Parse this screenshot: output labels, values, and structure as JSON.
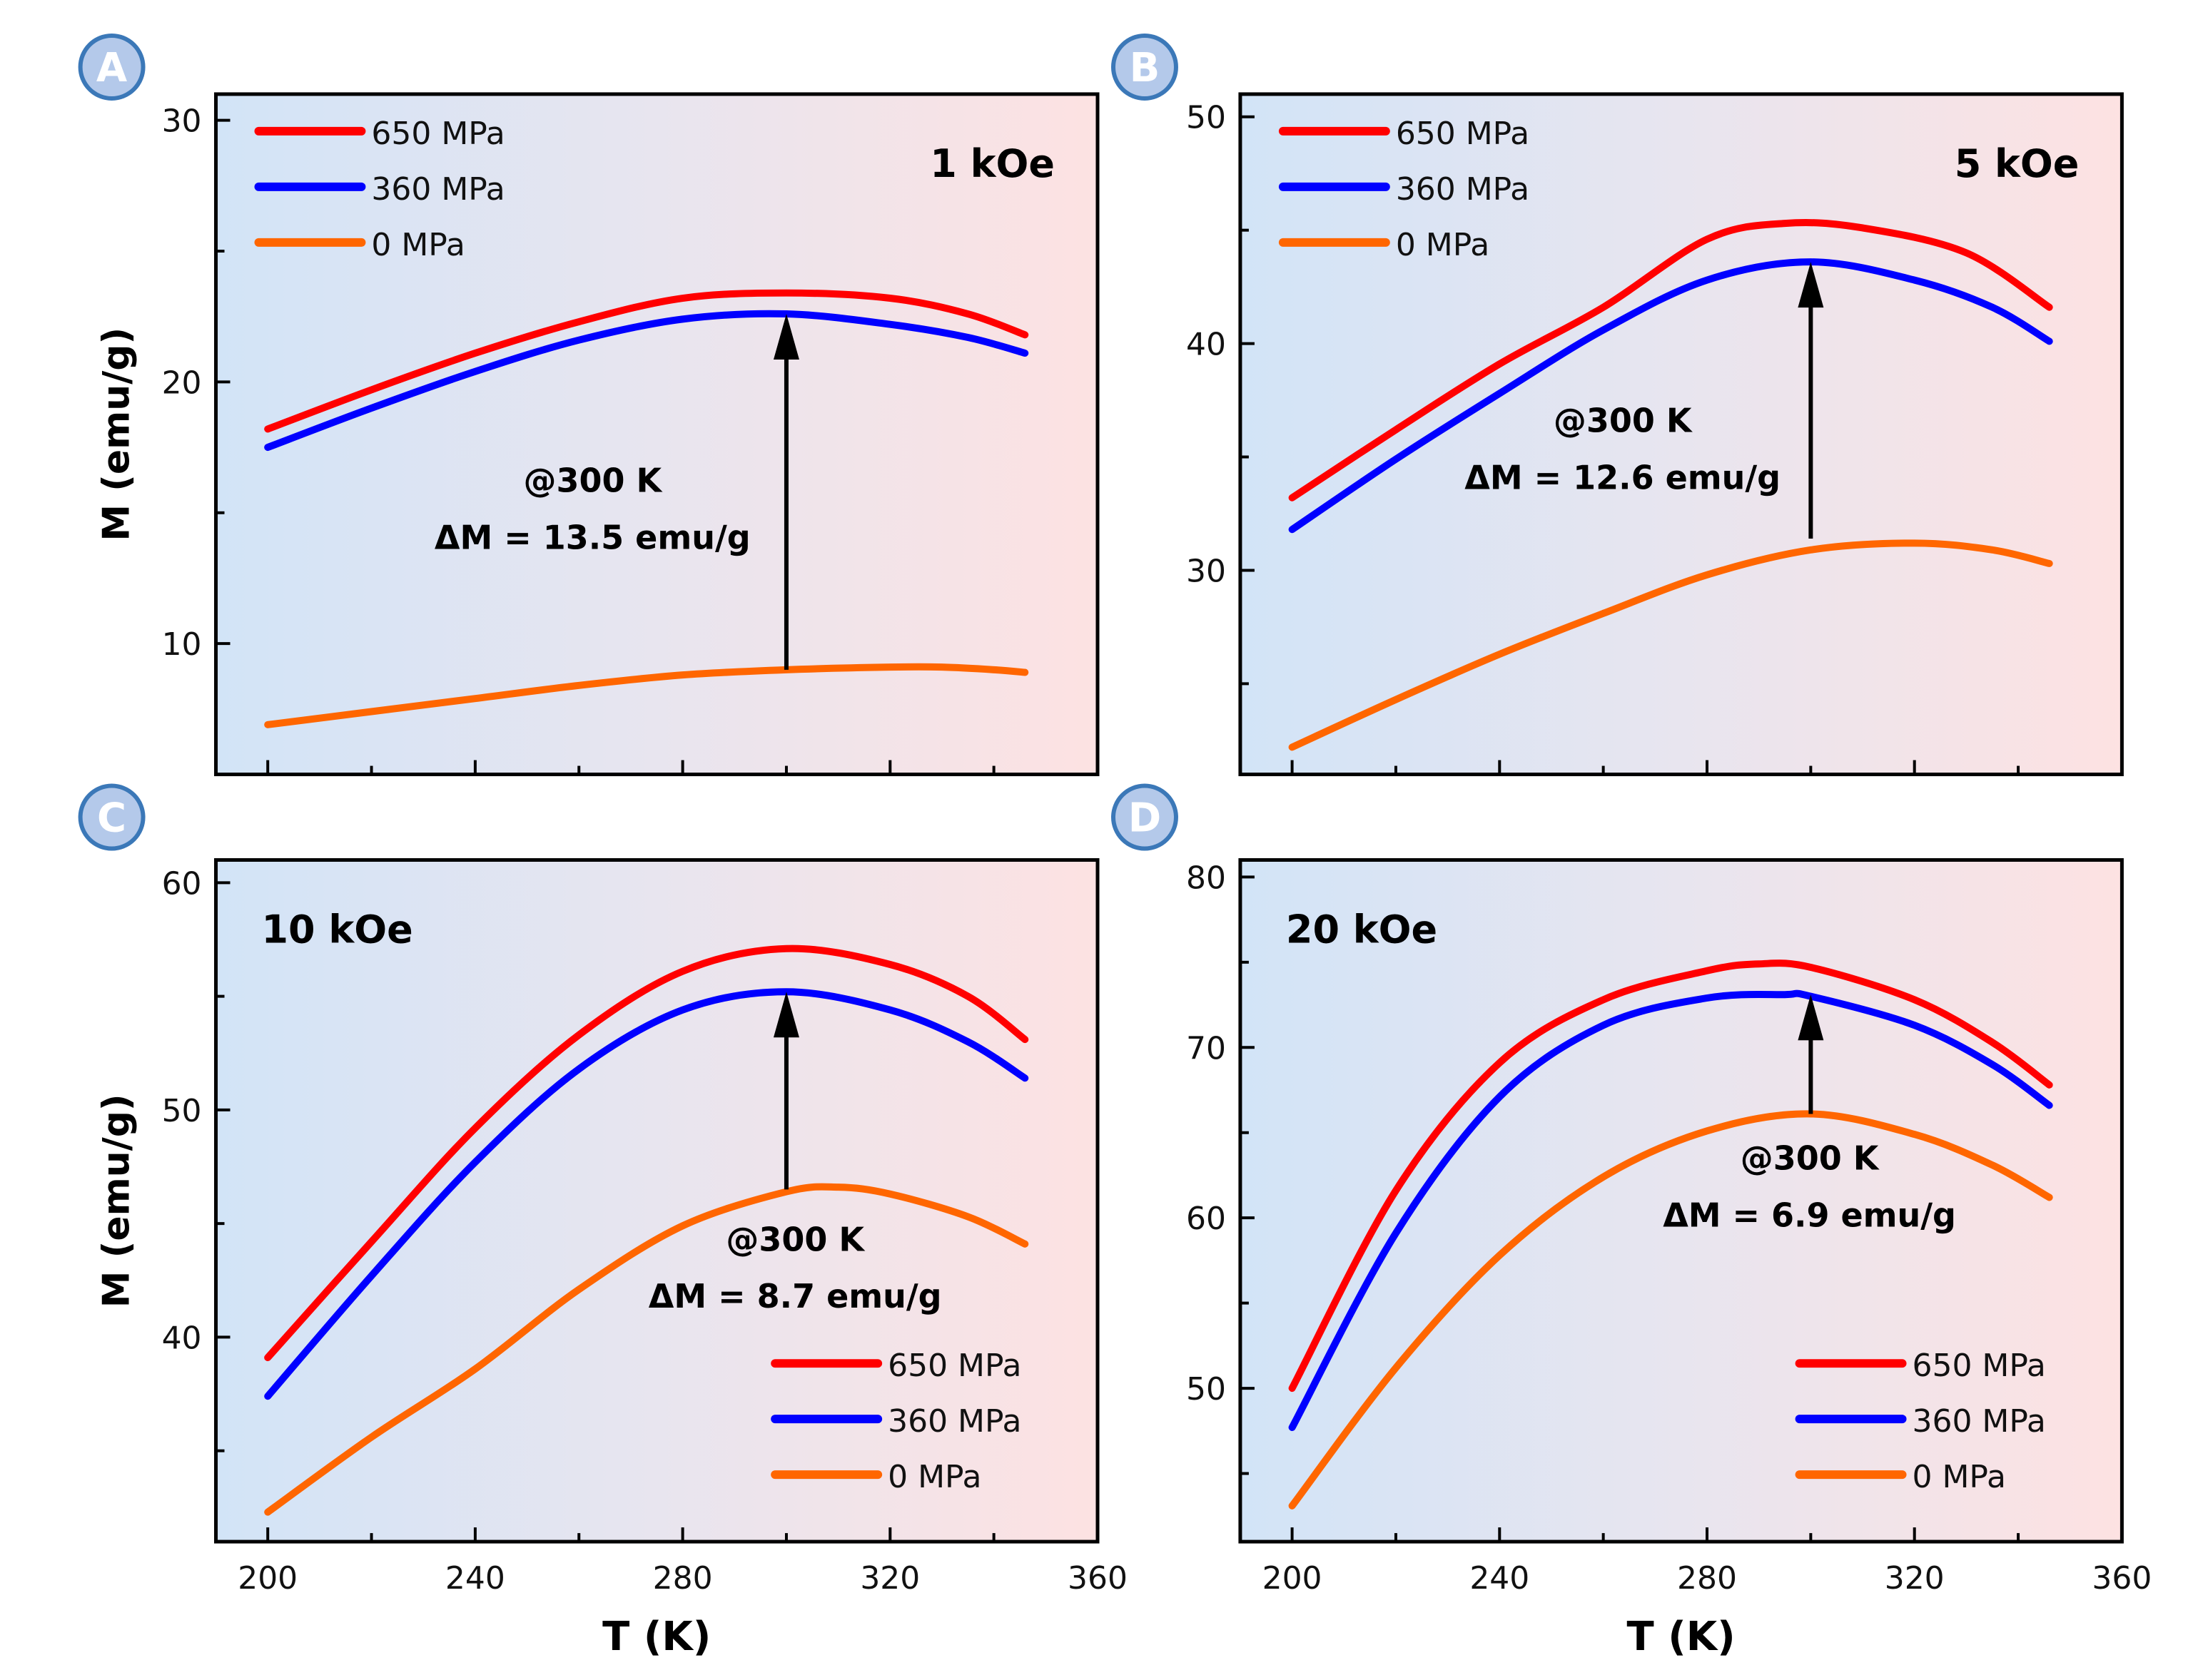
{
  "chart_data": [
    {
      "panel_label": "A",
      "type": "line",
      "field": "1 kOe",
      "xlabel": "",
      "ylabel": "M (emu/g)",
      "xlim": [
        190,
        360
      ],
      "ylim": [
        5,
        31
      ],
      "xticks": [
        200,
        240,
        280,
        320,
        360
      ],
      "yticks": [
        10,
        20,
        30
      ],
      "show_xticklabels": false,
      "legend": "top-left",
      "annotation": {
        "line1": "@300 K",
        "line2": "ΔM = 13.5 emu/g",
        "arrow_x": 300,
        "arrow_from": 9.0,
        "arrow_to": 22.6
      },
      "series": [
        {
          "name": "650 MPa",
          "color": "#ff0000",
          "x": [
            200,
            220,
            240,
            260,
            280,
            300,
            320,
            335,
            346
          ],
          "y": [
            18.2,
            19.7,
            21.1,
            22.3,
            23.2,
            23.4,
            23.2,
            22.6,
            21.8
          ]
        },
        {
          "name": "360 MPa",
          "color": "#0000ff",
          "x": [
            200,
            220,
            240,
            260,
            280,
            300,
            320,
            335,
            346
          ],
          "y": [
            17.5,
            19.0,
            20.4,
            21.6,
            22.4,
            22.6,
            22.2,
            21.7,
            21.1
          ]
        },
        {
          "name": "0 MPa",
          "color": "#ff6600",
          "x": [
            200,
            220,
            240,
            260,
            280,
            300,
            320,
            330,
            340,
            346
          ],
          "y": [
            6.9,
            7.4,
            7.9,
            8.4,
            8.8,
            9.0,
            9.1,
            9.1,
            9.0,
            8.9
          ]
        }
      ]
    },
    {
      "panel_label": "B",
      "type": "line",
      "field": "5 kOe",
      "xlabel": "",
      "ylabel": "",
      "xlim": [
        190,
        360
      ],
      "ylim": [
        21,
        51
      ],
      "xticks": [
        200,
        240,
        280,
        320,
        360
      ],
      "yticks": [
        30,
        40,
        50
      ],
      "show_xticklabels": false,
      "legend": "top-left",
      "annotation": {
        "line1": "@300 K",
        "line2": "ΔM = 12.6 emu/g",
        "arrow_x": 300,
        "arrow_from": 31.4,
        "arrow_to": 43.6
      },
      "series": [
        {
          "name": "650 MPa",
          "color": "#ff0000",
          "x": [
            200,
            220,
            240,
            260,
            280,
            295,
            310,
            330,
            346
          ],
          "y": [
            33.2,
            36.2,
            39.1,
            41.6,
            44.6,
            45.3,
            45.1,
            44.0,
            41.6
          ]
        },
        {
          "name": "360 MPa",
          "color": "#0000ff",
          "x": [
            200,
            220,
            240,
            260,
            280,
            300,
            320,
            335,
            346
          ],
          "y": [
            31.8,
            34.9,
            37.8,
            40.6,
            42.8,
            43.6,
            42.8,
            41.6,
            40.1
          ]
        },
        {
          "name": "0 MPa",
          "color": "#ff6600",
          "x": [
            200,
            220,
            240,
            260,
            280,
            300,
            320,
            335,
            346
          ],
          "y": [
            22.2,
            24.3,
            26.3,
            28.1,
            29.8,
            30.9,
            31.2,
            30.9,
            30.3
          ]
        }
      ]
    },
    {
      "panel_label": "C",
      "type": "line",
      "field": "10 kOe",
      "xlabel": "T (K)",
      "ylabel": "M (emu/g)",
      "xlim": [
        190,
        360
      ],
      "ylim": [
        31,
        61
      ],
      "xticks": [
        200,
        240,
        280,
        320,
        360
      ],
      "yticks": [
        40,
        50,
        60
      ],
      "show_xticklabels": true,
      "legend": "bottom-right",
      "annotation": {
        "line1": "@300 K",
        "line2": "ΔM = 8.7 emu/g",
        "arrow_x": 300,
        "arrow_from": 46.5,
        "arrow_to": 55.2
      },
      "series": [
        {
          "name": "650 MPa",
          "color": "#ff0000",
          "x": [
            200,
            220,
            240,
            260,
            280,
            300,
            320,
            335,
            346
          ],
          "y": [
            39.1,
            44.2,
            49.2,
            53.3,
            56.1,
            57.1,
            56.4,
            55.0,
            53.1
          ]
        },
        {
          "name": "360 MPa",
          "color": "#0000ff",
          "x": [
            200,
            220,
            240,
            260,
            280,
            300,
            320,
            335,
            346
          ],
          "y": [
            37.4,
            42.7,
            47.7,
            51.8,
            54.4,
            55.2,
            54.4,
            53.0,
            51.4
          ]
        },
        {
          "name": "0 MPa",
          "color": "#ff6600",
          "x": [
            200,
            220,
            240,
            260,
            280,
            300,
            310,
            320,
            335,
            346
          ],
          "y": [
            32.3,
            35.6,
            38.6,
            42.1,
            44.9,
            46.4,
            46.6,
            46.3,
            45.3,
            44.1
          ]
        }
      ]
    },
    {
      "panel_label": "D",
      "type": "line",
      "field": "20 kOe",
      "xlabel": "T (K)",
      "ylabel": "",
      "xlim": [
        190,
        360
      ],
      "ylim": [
        41,
        81
      ],
      "xticks": [
        200,
        240,
        280,
        320,
        360
      ],
      "yticks": [
        50,
        60,
        70,
        80
      ],
      "show_xticklabels": true,
      "legend": "bottom-right",
      "annotation": {
        "line1": "@300 K",
        "line2": "ΔM = 6.9 emu/g",
        "arrow_x": 300,
        "arrow_from": 66.1,
        "arrow_to": 73.1
      },
      "series": [
        {
          "name": "650 MPa",
          "color": "#ff0000",
          "x": [
            200,
            220,
            240,
            260,
            280,
            290,
            300,
            320,
            335,
            346
          ],
          "y": [
            50.0,
            61.6,
            69.1,
            72.8,
            74.5,
            74.9,
            74.7,
            72.8,
            70.3,
            67.8
          ]
        },
        {
          "name": "360 MPa",
          "color": "#0000ff",
          "x": [
            200,
            220,
            240,
            260,
            280,
            295,
            300,
            320,
            335,
            346
          ],
          "y": [
            47.7,
            59.1,
            67.1,
            71.3,
            72.9,
            73.1,
            73.0,
            71.3,
            69.0,
            66.6
          ]
        },
        {
          "name": "0 MPa",
          "color": "#ff6600",
          "x": [
            200,
            220,
            240,
            260,
            280,
            300,
            320,
            335,
            346
          ],
          "y": [
            43.1,
            51.2,
            57.8,
            62.4,
            65.1,
            66.1,
            64.9,
            63.1,
            61.2
          ]
        }
      ]
    }
  ]
}
